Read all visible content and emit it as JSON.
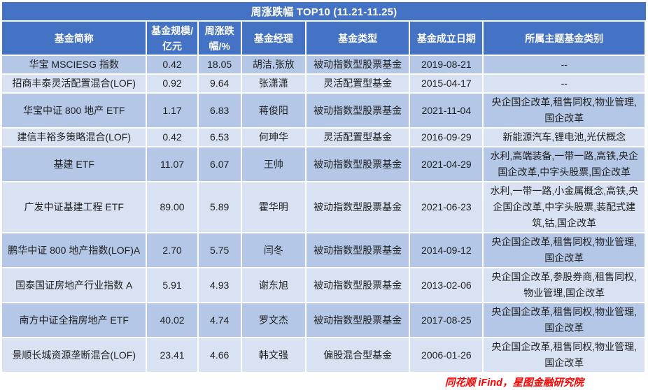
{
  "title": "周涨跌幅 TOP10 (11.21-11.25)",
  "table": {
    "columns": [
      "基金简称",
      "基金规模/亿元",
      "周涨跌幅/%",
      "基金经理",
      "基金类型",
      "基金成立日期",
      "所属主题基金类别"
    ],
    "rows": [
      {
        "name": "华宝 MSCIESG 指数",
        "size": "0.42",
        "change": "18.05",
        "manager": "胡洁,张放",
        "type": "被动指数型股票基金",
        "date": "2019-08-21",
        "themes": "--"
      },
      {
        "name": "招商丰泰灵活配置混合(LOF)",
        "size": "0.92",
        "change": "9.64",
        "manager": "张潇潇",
        "type": "灵活配置型基金",
        "date": "2015-04-17",
        "themes": "--"
      },
      {
        "name": "华宝中证 800 地产 ETF",
        "size": "1.17",
        "change": "6.83",
        "manager": "蒋俊阳",
        "type": "被动指数型股票基金",
        "date": "2021-11-04",
        "themes": "央企国企改革,租售同权,物业管理,国企改革"
      },
      {
        "name": "建信丰裕多策略混合(LOF)",
        "size": "0.42",
        "change": "6.53",
        "manager": "何珅华",
        "type": "灵活配置型基金",
        "date": "2016-09-29",
        "themes": "新能源汽车,锂电池,光伏概念"
      },
      {
        "name": "基建 ETF",
        "size": "11.07",
        "change": "6.07",
        "manager": "王帅",
        "type": "被动指数型股票基金",
        "date": "2021-04-29",
        "themes": "水利,高端装备,一带一路,高铁,央企国企改革,中字头股票,国企改革"
      },
      {
        "name": "广发中证基建工程 ETF",
        "size": "89.00",
        "change": "5.89",
        "manager": "霍华明",
        "type": "被动指数型股票基金",
        "date": "2021-06-23",
        "themes": "水利,一带一路,小金属概念,高铁,央企国企改革,中字头股票,装配式建筑,钴,国企改革"
      },
      {
        "name": "鹏华中证 800 地产指数(LOF)A",
        "size": "2.70",
        "change": "5.75",
        "manager": "闫冬",
        "type": "被动指数型股票基金",
        "date": "2014-09-12",
        "themes": "央企国企改革,租售同权,物业管理,国企改革"
      },
      {
        "name": "国泰国证房地产行业指数 A",
        "size": "5.91",
        "change": "4.93",
        "manager": "谢东旭",
        "type": "被动指数型股票基金",
        "date": "2013-02-06",
        "themes": "央企国企改革,参股券商,租售同权,物业管理,国企改革"
      },
      {
        "name": "南方中证全指房地产 ETF",
        "size": "40.02",
        "change": "4.74",
        "manager": "罗文杰",
        "type": "被动指数型股票基金",
        "date": "2017-08-25",
        "themes": "央企国企改革,租售同权,物业管理,国企改革"
      },
      {
        "name": "景顺长城资源垄断混合(LOF)",
        "size": "23.41",
        "change": "4.66",
        "manager": "韩文强",
        "type": "偏股混合型基金",
        "date": "2006-01-26",
        "themes": "央企国企改革,租售同权,物业管理,国企改革"
      }
    ]
  },
  "footer": "同花顺 iFind，星图金融研究院",
  "colors": {
    "header_blue": "#4472C4",
    "band_dark": "#B4C7E7",
    "band_light": "#D9E2F3",
    "footer_red": "#FF0000"
  }
}
